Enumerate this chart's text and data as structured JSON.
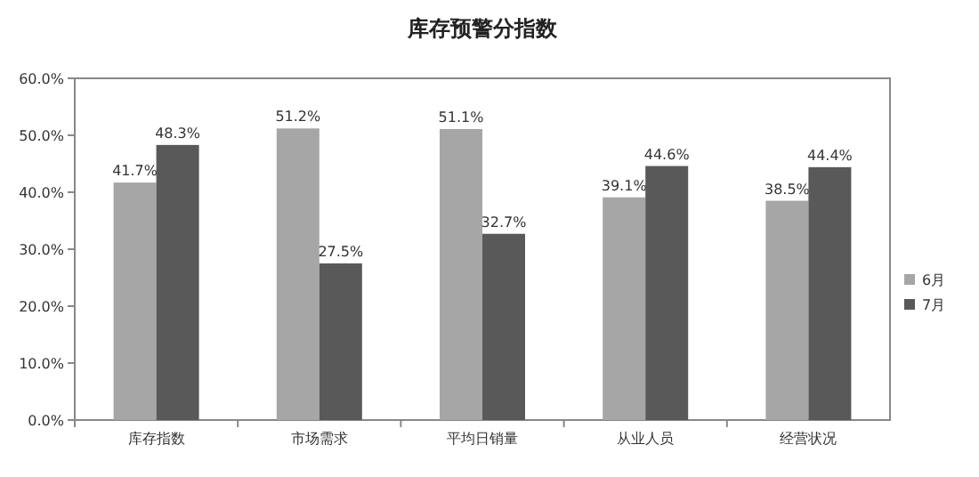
{
  "chart_data": {
    "type": "bar",
    "title": "库存预警分指数",
    "categories": [
      "库存指数",
      "市场需求",
      "平均日销量",
      "从业人员",
      "经营状况"
    ],
    "series": [
      {
        "name": "6月",
        "color": "#a6a6a6",
        "values": [
          41.7,
          51.2,
          51.1,
          39.1,
          38.5
        ],
        "value_labels": [
          "41.7%",
          "51.2%",
          "51.1%",
          "39.1%",
          "38.5%"
        ]
      },
      {
        "name": "7月",
        "color": "#595959",
        "values": [
          48.3,
          27.5,
          32.7,
          44.6,
          44.4
        ],
        "value_labels": [
          "48.3%",
          "27.5%",
          "32.7%",
          "44.6%",
          "44.4%"
        ]
      }
    ],
    "ylim": [
      0,
      60
    ],
    "yticks": [
      {
        "value": 0,
        "label": "0.0%"
      },
      {
        "value": 10,
        "label": "10.0%"
      },
      {
        "value": 20,
        "label": "20.0%"
      },
      {
        "value": 30,
        "label": "30.0%"
      },
      {
        "value": 40,
        "label": "40.0%"
      },
      {
        "value": 50,
        "label": "50.0%"
      },
      {
        "value": 60,
        "label": "60.0%"
      }
    ],
    "grid": false,
    "legend": "right"
  }
}
